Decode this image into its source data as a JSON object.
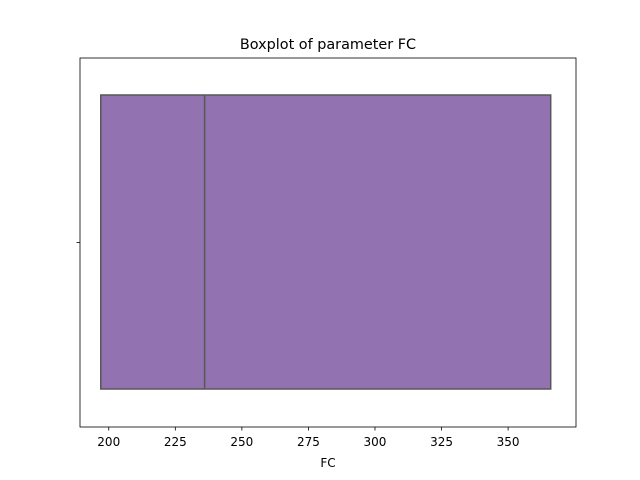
{
  "chart_data": {
    "type": "boxplot",
    "title": "Boxplot of parameter FC",
    "xlabel": "FC",
    "ylabel": "",
    "xlim": [
      189.2,
      375.5
    ],
    "xticks": [
      200,
      225,
      250,
      275,
      300,
      325,
      350
    ],
    "grid": false,
    "series": [
      {
        "q1": 197,
        "median": 236,
        "q3": 366,
        "whisker_low": 197,
        "whisker_high": 366
      }
    ],
    "colors": {
      "box_fill": "#9272b1",
      "box_edge": "#575757",
      "axes": "#000000"
    }
  }
}
